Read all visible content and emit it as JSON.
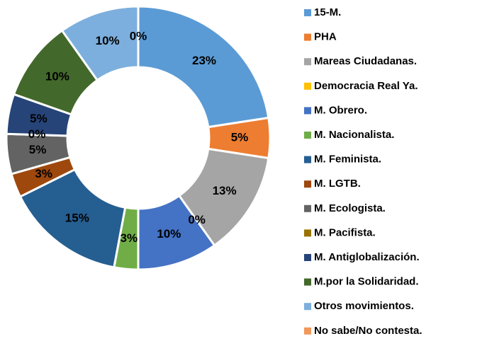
{
  "chart_data": {
    "type": "donut",
    "categories": [
      "15-M.",
      "PHA",
      "Mareas Ciudadanas.",
      "Democracia Real Ya.",
      "M. Obrero.",
      "M. Nacionalista.",
      "M. Feminista.",
      "M. LGTB.",
      "M. Ecologista.",
      "M. Pacifista.",
      "M. Antiglobalización.",
      "M.por la Solidaridad.",
      "Otros movimientos.",
      "No sabe/No contesta."
    ],
    "values": [
      23,
      5,
      13,
      0,
      10,
      3,
      15,
      3,
      5,
      0,
      5,
      10,
      10,
      0
    ],
    "value_labels": [
      "23%",
      "5%",
      "13%",
      "0%",
      "10%",
      "3%",
      "15%",
      "3%",
      "5%",
      "0%",
      "5%",
      "10%",
      "10%",
      "0%"
    ],
    "colors": [
      "#5b9bd5",
      "#ed7d31",
      "#a5a5a5",
      "#ffc000",
      "#4472c4",
      "#70ad47",
      "#255e91",
      "#9e480e",
      "#636363",
      "#997300",
      "#264478",
      "#43682b",
      "#7cafdd",
      "#f1975a"
    ],
    "legend": "right"
  }
}
